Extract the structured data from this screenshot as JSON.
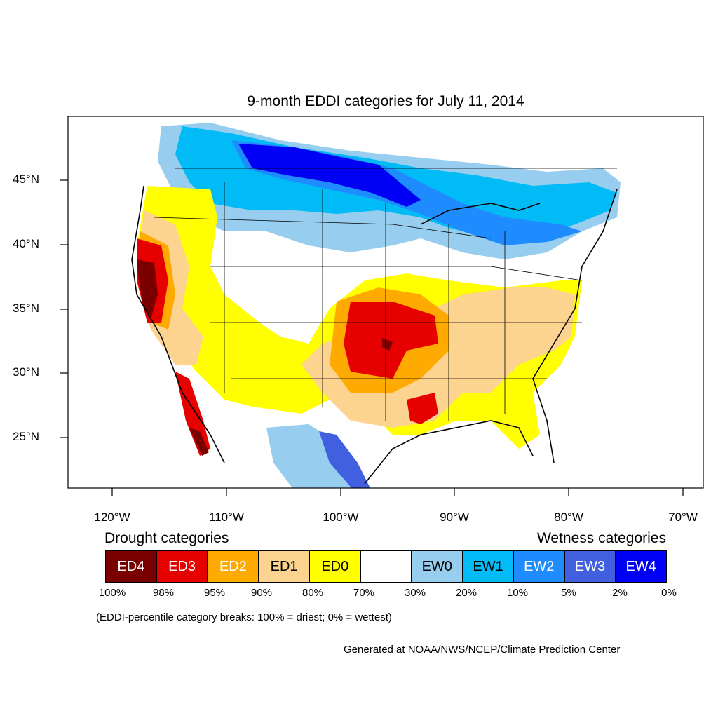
{
  "title": "9-month EDDI categories for July 11, 2014",
  "colors": {
    "ED4": "#7a0000",
    "ED3": "#e60000",
    "ED2": "#ffaa00",
    "ED1": "#fcd38f",
    "ED0": "#ffff00",
    "neutral": "#ffffff",
    "EW0": "#97cdee",
    "EW1": "#00bbf5",
    "EW2": "#1e8cff",
    "EW3": "#4060e0",
    "EW4": "#0000f5"
  },
  "lat_labels": [
    "45°N",
    "40°N",
    "35°N",
    "30°N",
    "25°N"
  ],
  "lon_labels": [
    "120°W",
    "110°W",
    "100°W",
    "90°W",
    "80°W",
    "70°W"
  ],
  "legend": {
    "drought_heading": "Drought categories",
    "wetness_heading": "Wetness categories",
    "categories": [
      {
        "label": "ED4",
        "text_color": "#ffffff"
      },
      {
        "label": "ED3",
        "text_color": "#ffffff"
      },
      {
        "label": "ED2",
        "text_color": "#ffffff"
      },
      {
        "label": "ED1",
        "text_color": "#000000"
      },
      {
        "label": "ED0",
        "text_color": "#000000"
      },
      {
        "label": "",
        "text_color": "#000000"
      },
      {
        "label": "EW0",
        "text_color": "#000000"
      },
      {
        "label": "EW1",
        "text_color": "#000000"
      },
      {
        "label": "EW2",
        "text_color": "#ffffff"
      },
      {
        "label": "EW3",
        "text_color": "#ffffff"
      },
      {
        "label": "EW4",
        "text_color": "#ffffff"
      }
    ],
    "breaks": [
      "100%",
      "98%",
      "95%",
      "90%",
      "80%",
      "70%",
      "30%",
      "20%",
      "10%",
      "5%",
      "2%",
      "0%"
    ]
  },
  "note": "(EDDI-percentile category breaks: 100% = driest; 0% = wettest)",
  "credit": "Generated at NOAA/NWS/NCEP/Climate Prediction Center"
}
